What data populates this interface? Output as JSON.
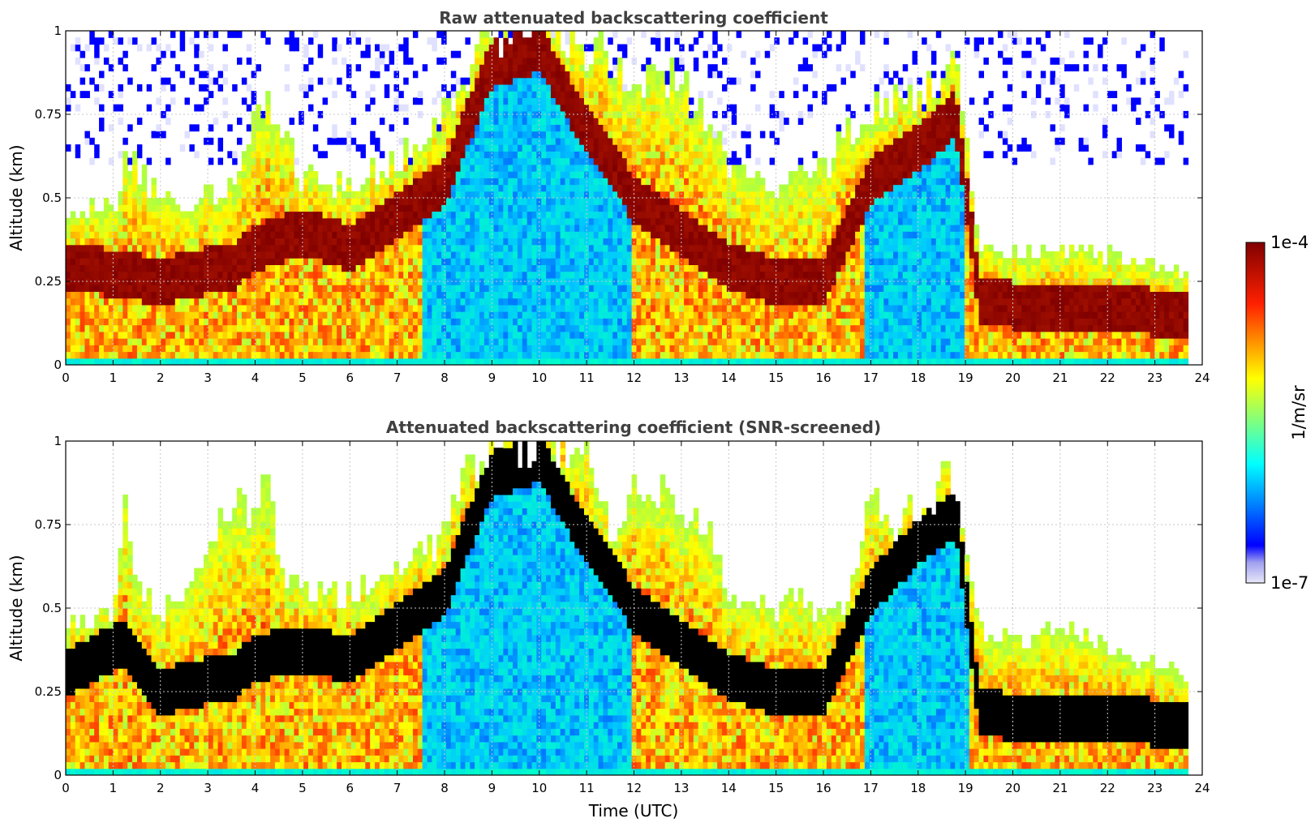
{
  "chart_data": [
    {
      "type": "heatmap",
      "title": "Raw attenuated backscattering coefficient",
      "xlabel": "",
      "ylabel": "Altitude (km)",
      "xlim": [
        0,
        24
      ],
      "ylim": [
        0,
        1
      ],
      "x_ticks": [
        "0",
        "1",
        "2",
        "3",
        "4",
        "5",
        "6",
        "7",
        "8",
        "9",
        "10",
        "11",
        "12",
        "13",
        "14",
        "15",
        "16",
        "17",
        "18",
        "19",
        "20",
        "21",
        "22",
        "23",
        "24"
      ],
      "y_ticks": [
        "0",
        "0.25",
        "0.5",
        "0.75",
        "1"
      ],
      "grid": true,
      "data_end_hour": 23.7,
      "screened": false,
      "layer_top_km": [
        [
          0,
          0.45
        ],
        [
          1,
          0.48
        ],
        [
          1.3,
          0.62
        ],
        [
          2,
          0.5
        ],
        [
          3,
          0.5
        ],
        [
          3.6,
          0.55
        ],
        [
          4,
          0.72
        ],
        [
          4.3,
          0.78
        ],
        [
          5,
          0.55
        ],
        [
          6,
          0.55
        ],
        [
          7,
          0.6
        ],
        [
          8,
          0.75
        ],
        [
          9,
          1.0
        ],
        [
          10,
          1.0
        ],
        [
          11,
          0.95
        ],
        [
          12,
          0.85
        ],
        [
          13,
          0.85
        ],
        [
          14,
          0.6
        ],
        [
          15,
          0.5
        ],
        [
          16,
          0.6
        ],
        [
          17,
          0.75
        ],
        [
          18,
          0.82
        ],
        [
          18.8,
          0.88
        ],
        [
          19.3,
          0.35
        ],
        [
          20,
          0.33
        ],
        [
          21,
          0.35
        ],
        [
          22,
          0.33
        ],
        [
          23,
          0.3
        ],
        [
          23.7,
          0.28
        ]
      ],
      "boundary_layer_km": [
        [
          0,
          0.3
        ],
        [
          2,
          0.25
        ],
        [
          3.6,
          0.3
        ],
        [
          4,
          0.35
        ],
        [
          5,
          0.4
        ],
        [
          6,
          0.35
        ],
        [
          7,
          0.45
        ],
        [
          8,
          0.55
        ],
        [
          9,
          0.9
        ],
        [
          10,
          0.95
        ],
        [
          11,
          0.7
        ],
        [
          12,
          0.5
        ],
        [
          13,
          0.4
        ],
        [
          14,
          0.3
        ],
        [
          15,
          0.25
        ],
        [
          16,
          0.25
        ],
        [
          17,
          0.55
        ],
        [
          18,
          0.65
        ],
        [
          18.8,
          0.75
        ],
        [
          19.3,
          0.2
        ],
        [
          20,
          0.18
        ],
        [
          22,
          0.17
        ],
        [
          23.7,
          0.15
        ]
      ]
    },
    {
      "type": "heatmap",
      "title": "Attenuated backscattering coefficient (SNR-screened)",
      "xlabel": "Time (UTC)",
      "ylabel": "Altitude (km)",
      "xlim": [
        0,
        24
      ],
      "ylim": [
        0,
        1
      ],
      "x_ticks": [
        "0",
        "1",
        "2",
        "3",
        "4",
        "5",
        "6",
        "7",
        "8",
        "9",
        "10",
        "11",
        "12",
        "13",
        "14",
        "15",
        "16",
        "17",
        "18",
        "19",
        "20",
        "21",
        "22",
        "23",
        "24"
      ],
      "y_ticks": [
        "0",
        "0.25",
        "0.5",
        "0.75",
        "1"
      ],
      "grid": true,
      "data_end_hour": 23.7,
      "screened": true,
      "layer_top_km": [
        [
          0,
          0.45
        ],
        [
          1,
          0.48
        ],
        [
          1.25,
          0.82
        ],
        [
          1.5,
          0.55
        ],
        [
          2,
          0.5
        ],
        [
          2.5,
          0.52
        ],
        [
          3.3,
          0.75
        ],
        [
          3.7,
          0.83
        ],
        [
          4,
          0.78
        ],
        [
          4.3,
          0.95
        ],
        [
          4.5,
          0.6
        ],
        [
          5,
          0.55
        ],
        [
          6,
          0.55
        ],
        [
          7,
          0.6
        ],
        [
          8,
          0.72
        ],
        [
          8.6,
          0.95
        ],
        [
          9,
          1.0
        ],
        [
          11,
          1.0
        ],
        [
          11.5,
          0.7
        ],
        [
          12,
          0.88
        ],
        [
          13,
          0.8
        ],
        [
          13.5,
          0.75
        ],
        [
          14,
          0.55
        ],
        [
          15,
          0.5
        ],
        [
          15.5,
          0.55
        ],
        [
          16,
          0.45
        ],
        [
          16.5,
          0.5
        ],
        [
          17,
          0.88
        ],
        [
          17.5,
          0.72
        ],
        [
          18,
          0.82
        ],
        [
          18.8,
          0.9
        ],
        [
          19.3,
          0.45
        ],
        [
          20,
          0.4
        ],
        [
          21,
          0.45
        ],
        [
          22,
          0.4
        ],
        [
          23,
          0.33
        ],
        [
          23.7,
          0.3
        ]
      ],
      "boundary_layer_km": [
        [
          0,
          0.3
        ],
        [
          1.25,
          0.4
        ],
        [
          2,
          0.25
        ],
        [
          3.6,
          0.3
        ],
        [
          4,
          0.35
        ],
        [
          5,
          0.38
        ],
        [
          6,
          0.35
        ],
        [
          7,
          0.45
        ],
        [
          8,
          0.55
        ],
        [
          9,
          0.9
        ],
        [
          10,
          0.95
        ],
        [
          11,
          0.7
        ],
        [
          12,
          0.5
        ],
        [
          13,
          0.4
        ],
        [
          14,
          0.3
        ],
        [
          15,
          0.25
        ],
        [
          16,
          0.25
        ],
        [
          17,
          0.55
        ],
        [
          18,
          0.7
        ],
        [
          18.8,
          0.78
        ],
        [
          19.3,
          0.2
        ],
        [
          20,
          0.17
        ],
        [
          22,
          0.17
        ],
        [
          23.7,
          0.15
        ]
      ]
    }
  ],
  "colorbar": {
    "label": "1/m/sr",
    "max_label": "1e-4",
    "min_label": "1e-7",
    "colormap": "jet"
  }
}
